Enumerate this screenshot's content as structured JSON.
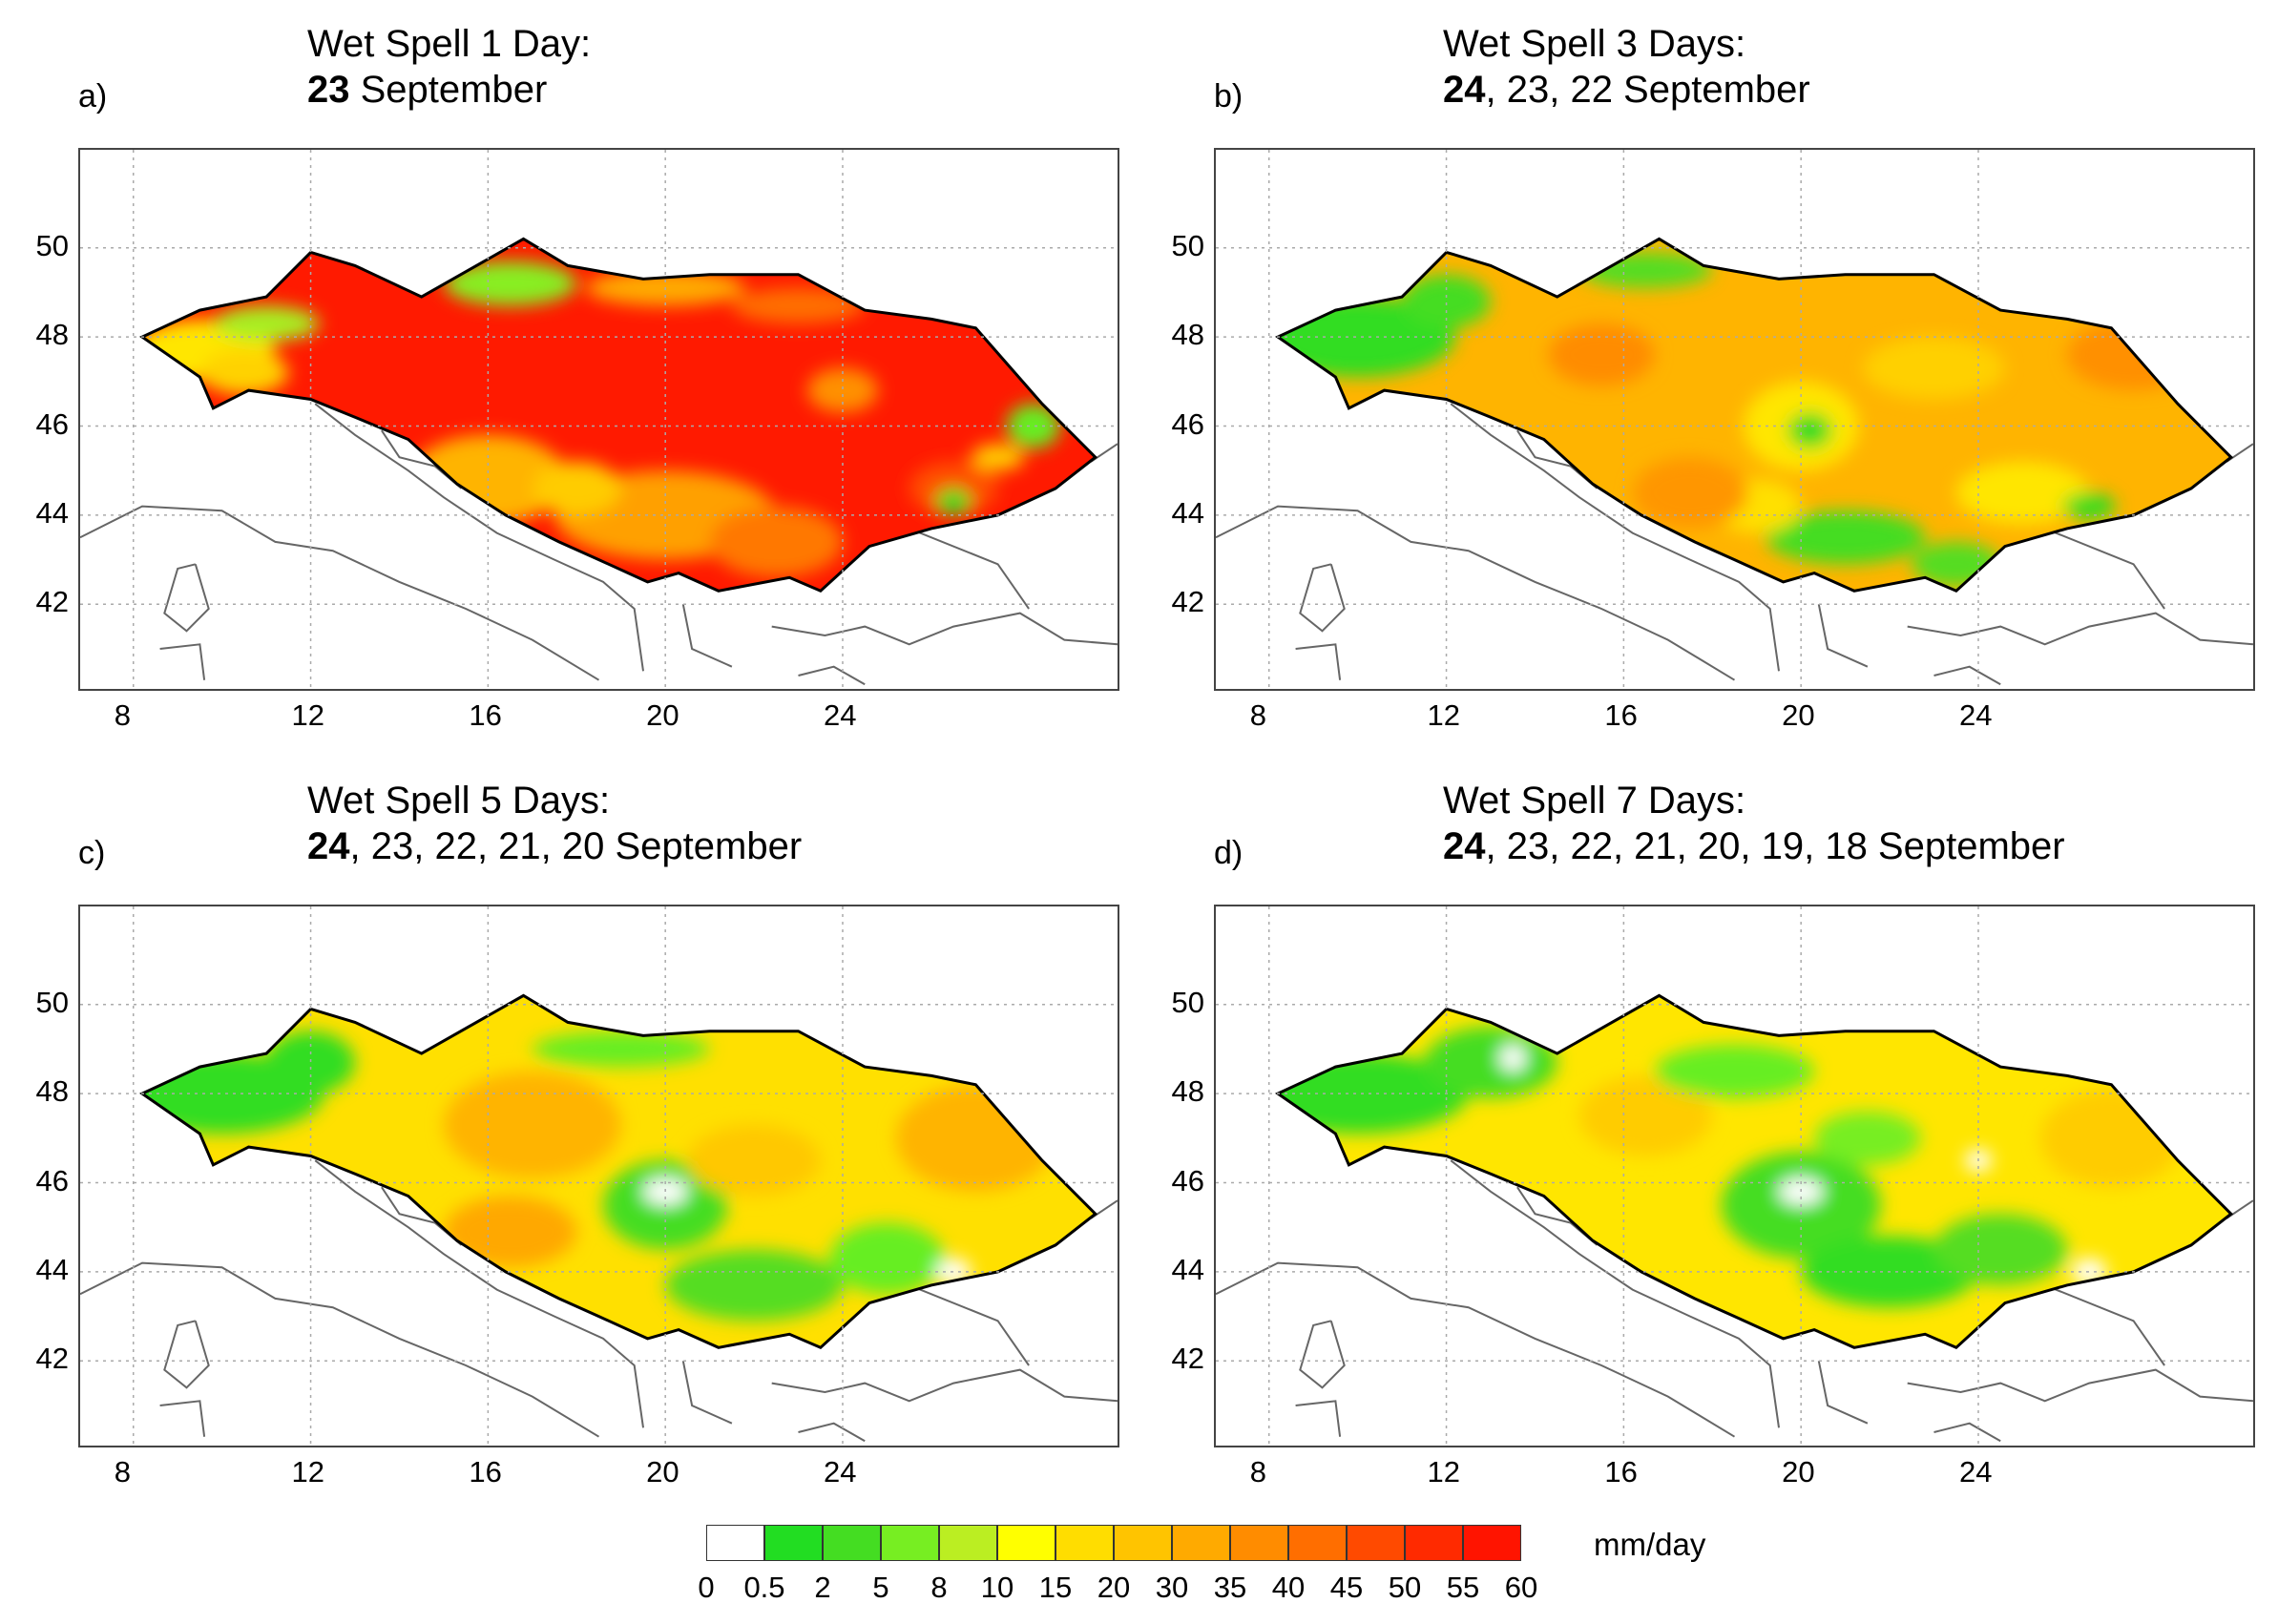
{
  "panels": [
    {
      "letter": "a)",
      "title_line1": "Wet Spell 1 Day:",
      "title_bold": "23",
      "title_rest": " September",
      "scheme": "day1"
    },
    {
      "letter": "b)",
      "title_line1": "Wet Spell 3 Days:",
      "title_bold": "24",
      "title_rest": ", 23, 22 September",
      "scheme": "day3"
    },
    {
      "letter": "c)",
      "title_line1": "Wet Spell 5 Days:",
      "title_bold": "24",
      "title_rest": ", 23, 22, 21, 20 September",
      "scheme": "day5"
    },
    {
      "letter": "d)",
      "title_line1": "Wet Spell 7 Days:",
      "title_bold": "24",
      "title_rest": ", 23, 22, 21, 20, 19, 18 September",
      "scheme": "day7"
    }
  ],
  "axes": {
    "lon_ticks": [
      "8",
      "12",
      "16",
      "20",
      "24"
    ],
    "lat_ticks": [
      "50",
      "48",
      "46",
      "44",
      "42"
    ]
  },
  "colorbar": {
    "unit": "mm/day",
    "labels": [
      "0",
      "0.5",
      "2",
      "5",
      "8",
      "10",
      "15",
      "20",
      "30",
      "35",
      "40",
      "45",
      "50",
      "55",
      "60"
    ],
    "colors": [
      "#ffffff",
      "#22dd22",
      "#44dd22",
      "#77ee22",
      "#bbee22",
      "#ffff00",
      "#ffdd00",
      "#ffc400",
      "#ffaa00",
      "#ff8c00",
      "#ff6e00",
      "#ff4a00",
      "#ff2a00",
      "#ff1400"
    ]
  }
}
